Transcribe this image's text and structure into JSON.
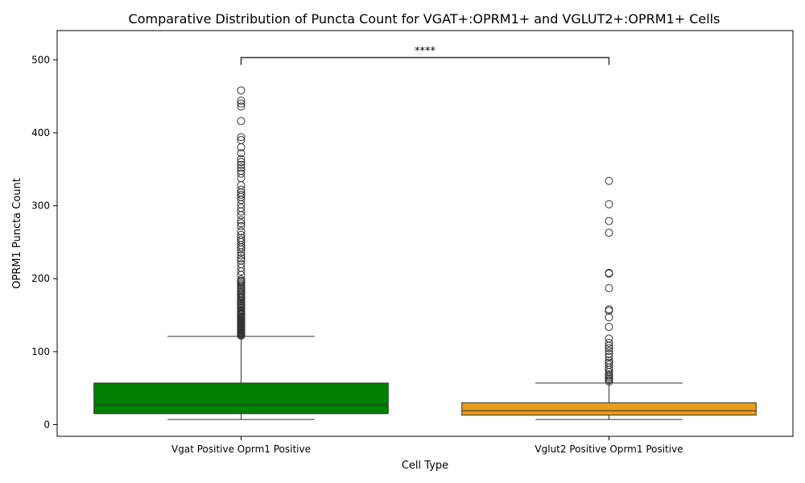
{
  "chart_data": {
    "type": "box",
    "title": "Comparative Distribution of Puncta Count for VGAT+:OPRM1+ and VGLUT2+:OPRM1+ Cells",
    "xlabel": "Cell Type",
    "ylabel": "OPRM1 Puncta Count",
    "ylim": [
      -16,
      540
    ],
    "yticks": [
      0,
      100,
      200,
      300,
      400,
      500
    ],
    "categories": [
      "Vgat Positive Oprm1 Positive",
      "Vglut2 Positive Oprm1 Positive"
    ],
    "boxes": [
      {
        "category": "Vgat Positive Oprm1 Positive",
        "color": "#008000",
        "whisker_low": 7,
        "q1": 15,
        "median": 27,
        "q3": 57,
        "whisker_high": 121,
        "outliers": [
          122,
          123,
          124,
          125,
          126,
          127,
          128,
          129,
          130,
          131,
          132,
          133,
          134,
          135,
          136,
          137,
          138,
          139,
          140,
          141,
          142,
          143,
          144,
          145,
          146,
          147,
          148,
          150,
          151,
          152,
          153,
          155,
          156,
          158,
          160,
          161,
          163,
          164,
          166,
          167,
          169,
          170,
          172,
          174,
          175,
          177,
          179,
          180,
          182,
          184,
          186,
          187,
          189,
          191,
          193,
          195,
          197,
          199,
          205,
          210,
          215,
          220,
          225,
          228,
          232,
          236,
          240,
          243,
          246,
          250,
          253,
          256,
          260,
          265,
          272,
          276,
          280,
          287,
          292,
          297,
          302,
          308,
          312,
          315,
          318,
          322,
          328,
          338,
          344,
          348,
          352,
          356,
          360,
          364,
          372,
          380,
          390,
          394,
          416,
          436,
          440,
          444,
          458
        ]
      },
      {
        "category": "Vglut2 Positive Oprm1 Positive",
        "color": "#e69d19",
        "whisker_low": 7,
        "q1": 13,
        "median": 19,
        "q3": 30,
        "whisker_high": 57,
        "outliers": [
          59,
          61,
          63,
          65,
          67,
          69,
          72,
          75,
          78,
          82,
          85,
          88,
          93,
          97,
          101,
          105,
          108,
          112,
          118,
          134,
          147,
          156,
          158,
          187,
          207,
          208,
          263,
          279,
          302,
          334
        ]
      }
    ],
    "annotation": {
      "text": "****",
      "y_bracket": 503,
      "y_drop": 493
    }
  }
}
